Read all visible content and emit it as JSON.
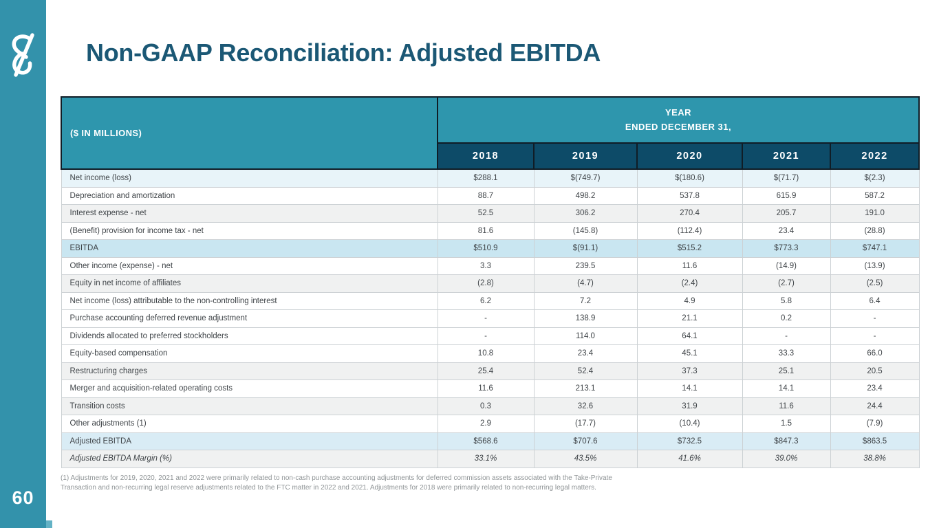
{
  "page": {
    "number": "60"
  },
  "title": "Non-GAAP Reconciliation: Adjusted EBITDA",
  "icons": {
    "sidebar_logo": "ampersand-logo"
  },
  "colors": {
    "sidebar_teal": "#3392ab",
    "header_teal": "#2e96ad",
    "year_navy": "#0d4b68",
    "title_text": "#1b5875",
    "row_first_blue": "#e8f4f9",
    "row_highlight_blue": "#c9e6f1",
    "row_subtotal_blue": "#d9ecf5",
    "row_gray": "#f0f1f1"
  },
  "table": {
    "corner_label": "($ IN MILLIONS)",
    "year_header_line1": "YEAR",
    "year_header_line2": "ENDED DECEMBER 31,",
    "years": [
      "2018",
      "2019",
      "2020",
      "2021",
      "2022"
    ],
    "rows": [
      {
        "label": "Net income (loss)",
        "values": [
          "$288.1",
          "$(749.7)",
          "$(180.6)",
          "$(71.7)",
          "$(2.3)"
        ],
        "style": "first"
      },
      {
        "label": "Depreciation and amortization",
        "values": [
          "88.7",
          "498.2",
          "537.8",
          "615.9",
          "587.2"
        ],
        "style": "white"
      },
      {
        "label": "Interest expense - net",
        "values": [
          "52.5",
          "306.2",
          "270.4",
          "205.7",
          "191.0"
        ],
        "style": "gray"
      },
      {
        "label": "(Benefit) provision for income tax - net",
        "values": [
          "81.6",
          "(145.8)",
          "(112.4)",
          "23.4",
          "(28.8)"
        ],
        "style": "white"
      },
      {
        "label": "EBITDA",
        "values": [
          "$510.9",
          "$(91.1)",
          "$515.2",
          "$773.3",
          "$747.1"
        ],
        "style": "highlight"
      },
      {
        "label": "Other income (expense) - net",
        "values": [
          "3.3",
          "239.5",
          "11.6",
          "(14.9)",
          "(13.9)"
        ],
        "style": "white"
      },
      {
        "label": "Equity in net income of affiliates",
        "values": [
          "(2.8)",
          "(4.7)",
          "(2.4)",
          "(2.7)",
          "(2.5)"
        ],
        "style": "gray"
      },
      {
        "label": "Net income (loss) attributable to the non-controlling interest",
        "values": [
          "6.2",
          "7.2",
          "4.9",
          "5.8",
          "6.4"
        ],
        "style": "white"
      },
      {
        "label": "Purchase accounting deferred revenue adjustment",
        "values": [
          "-",
          "138.9",
          "21.1",
          "0.2",
          "-"
        ],
        "style": "white"
      },
      {
        "label": "Dividends allocated to preferred stockholders",
        "values": [
          "-",
          "114.0",
          "64.1",
          "-",
          "-"
        ],
        "style": "white"
      },
      {
        "label": "Equity-based compensation",
        "values": [
          "10.8",
          "23.4",
          "45.1",
          "33.3",
          "66.0"
        ],
        "style": "white"
      },
      {
        "label": "Restructuring charges",
        "values": [
          "25.4",
          "52.4",
          "37.3",
          "25.1",
          "20.5"
        ],
        "style": "gray"
      },
      {
        "label": "Merger and acquisition-related operating costs",
        "values": [
          "11.6",
          "213.1",
          "14.1",
          "14.1",
          "23.4"
        ],
        "style": "white"
      },
      {
        "label": "Transition costs",
        "values": [
          "0.3",
          "32.6",
          "31.9",
          "11.6",
          "24.4"
        ],
        "style": "gray"
      },
      {
        "label": "Other adjustments (1)",
        "values": [
          "2.9",
          "(17.7)",
          "(10.4)",
          "1.5",
          "(7.9)"
        ],
        "style": "white"
      },
      {
        "label": "Adjusted EBITDA",
        "values": [
          "$568.6",
          "$707.6",
          "$732.5",
          "$847.3",
          "$863.5"
        ],
        "style": "highlight2"
      },
      {
        "label": "Adjusted EBITDA Margin (%)",
        "values": [
          "33.1%",
          "43.5%",
          "41.6%",
          "39.0%",
          "38.8%"
        ],
        "style": "margin"
      }
    ]
  },
  "footnote": "(1) Adjustments for 2019, 2020, 2021 and 2022 were primarily related to non-cash purchase accounting adjustments for deferred commission assets associated with the Take-Private Transaction and non-recurring legal reserve adjustments related to the FTC matter in 2022 and 2021. Adjustments for 2018 were primarily related to non-recurring legal matters."
}
